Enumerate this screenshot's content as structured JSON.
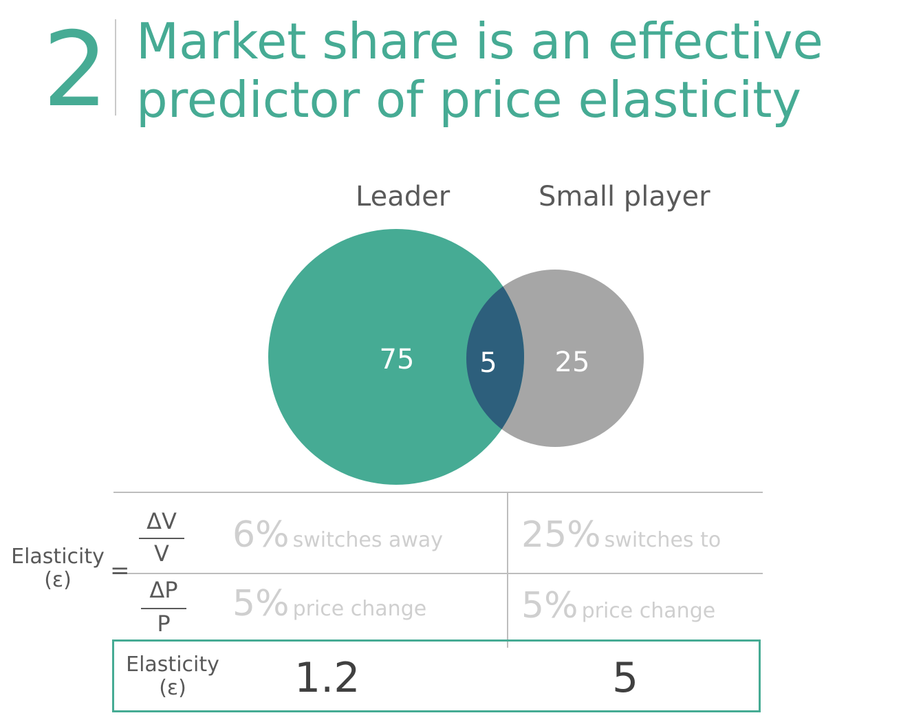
{
  "slide": {
    "number": "2",
    "title_line1": "Market share is an effective",
    "title_line2": "predictor of price elasticity"
  },
  "colors": {
    "accent": "#46ab94",
    "leader_circle": "#46ab94",
    "small_player_circle": "#a6a6a6",
    "overlap": "#2d5f7c"
  },
  "venn": {
    "leader_label": "Leader",
    "small_player_label": "Small player",
    "leader_only": "75",
    "overlap": "5",
    "small_player_only": "25"
  },
  "formula": {
    "label_line1": "Elasticity",
    "label_line2": "(ε)",
    "equals": "=",
    "numerator_top": "ΔV",
    "numerator_bottom": "V",
    "denominator_top": "ΔP",
    "denominator_bottom": "P"
  },
  "table": {
    "leader": {
      "volume_pct": "6%",
      "volume_desc": "switches away",
      "price_pct": "5%",
      "price_desc": "price change",
      "elasticity": "1.2"
    },
    "small_player": {
      "volume_pct": "25%",
      "volume_desc": "switches to",
      "price_pct": "5%",
      "price_desc": "price change",
      "elasticity": "5"
    },
    "result_label_line1": "Elasticity",
    "result_label_line2": "(ε)"
  }
}
